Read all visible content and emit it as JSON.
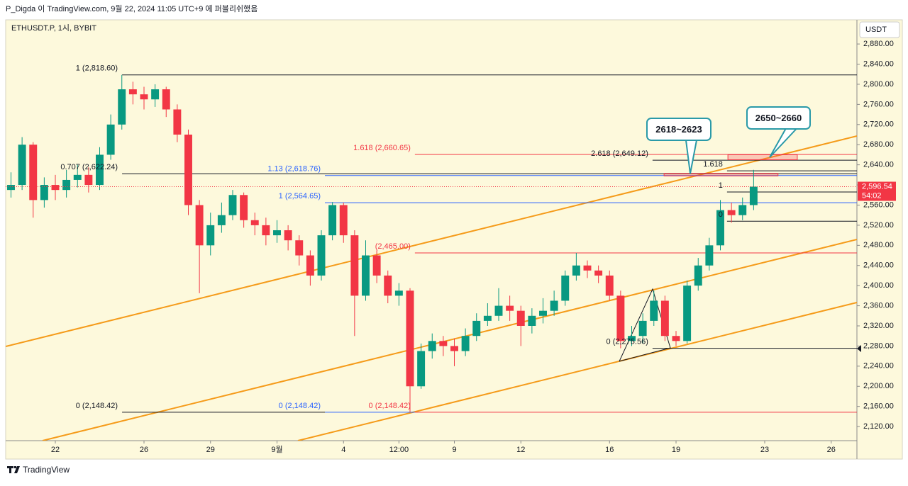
{
  "header": "P_Digda 이 TradingView.com, 9월 22, 2024 11:05 UTC+9 에 퍼블리쉬했음",
  "footer": "TradingView",
  "chart_data": {
    "type": "candlestick",
    "symbol": "ETHUSDT.P, 1시, BYBIT",
    "currency": "USDT",
    "up_color": "#089981",
    "down_color": "#f23645",
    "x": [
      -2,
      -1.5,
      -1,
      -0.5,
      0,
      0.5,
      1,
      1.5,
      2,
      2.5,
      3,
      3.5,
      4,
      4.5,
      5,
      5.5,
      6,
      6.5,
      7,
      7.5,
      8,
      8.5,
      9,
      9.5,
      10,
      10.5,
      11,
      11.5,
      12,
      12.5,
      13,
      13.5,
      14,
      14.5,
      15,
      15.5,
      16,
      16.5,
      17,
      17.5,
      18,
      18.5,
      19,
      19.5,
      20,
      20.5,
      21,
      21.5,
      22,
      22.5,
      23,
      23.5,
      24,
      24.5,
      25,
      25.5,
      26,
      26.5,
      27,
      27.5,
      28,
      28.5,
      29,
      29.5,
      30,
      30.5,
      31,
      31.5
    ],
    "open": [
      2590,
      2600,
      2680,
      2570,
      2600,
      2590,
      2610,
      2620,
      2600,
      2660,
      2720,
      2790,
      2780,
      2770,
      2790,
      2750,
      2700,
      2560,
      2480,
      2520,
      2540,
      2580,
      2530,
      2520,
      2500,
      2510,
      2490,
      2460,
      2420,
      2500,
      2560,
      2500,
      2380,
      2460,
      2420,
      2380,
      2390,
      2200,
      2270,
      2290,
      2280,
      2270,
      2300,
      2330,
      2340,
      2360,
      2350,
      2320,
      2340,
      2350,
      2370,
      2420,
      2440,
      2430,
      2420,
      2380,
      2290,
      2300,
      2330,
      2370,
      2300,
      2290,
      2400,
      2440,
      2480,
      2550,
      2540,
      2560
    ],
    "high": [
      2625,
      2695,
      2685,
      2615,
      2620,
      2630,
      2640,
      2635,
      2675,
      2740,
      2818.6,
      2805,
      2795,
      2800,
      2795,
      2760,
      2710,
      2570,
      2545,
      2565,
      2590,
      2585,
      2545,
      2535,
      2530,
      2520,
      2500,
      2470,
      2510,
      2566,
      2565,
      2510,
      2490,
      2470,
      2430,
      2405,
      2395,
      2285,
      2305,
      2300,
      2295,
      2315,
      2345,
      2365,
      2395,
      2380,
      2360,
      2355,
      2375,
      2390,
      2430,
      2465,
      2450,
      2440,
      2430,
      2390,
      2320,
      2345,
      2390,
      2380,
      2310,
      2410,
      2455,
      2495,
      2570,
      2565,
      2575,
      2630
    ],
    "low": [
      2575,
      2590,
      2535,
      2555,
      2570,
      2575,
      2595,
      2585,
      2590,
      2650,
      2710,
      2760,
      2750,
      2755,
      2735,
      2685,
      2540,
      2385,
      2460,
      2505,
      2530,
      2515,
      2500,
      2480,
      2485,
      2470,
      2440,
      2400,
      2410,
      2490,
      2485,
      2300,
      2370,
      2405,
      2365,
      2360,
      2148.42,
      2195,
      2255,
      2260,
      2240,
      2260,
      2290,
      2320,
      2330,
      2330,
      2280,
      2305,
      2325,
      2340,
      2360,
      2410,
      2415,
      2405,
      2370,
      2275.56,
      2280,
      2285,
      2320,
      2290,
      2280,
      2285,
      2390,
      2430,
      2470,
      2525,
      2530,
      2550
    ],
    "close": [
      2600,
      2680,
      2570,
      2600,
      2590,
      2610,
      2620,
      2600,
      2660,
      2720,
      2790,
      2780,
      2770,
      2790,
      2750,
      2700,
      2560,
      2480,
      2520,
      2540,
      2580,
      2530,
      2520,
      2500,
      2510,
      2490,
      2460,
      2420,
      2500,
      2560,
      2500,
      2380,
      2460,
      2420,
      2380,
      2390,
      2200,
      2270,
      2290,
      2280,
      2270,
      2300,
      2330,
      2340,
      2360,
      2350,
      2320,
      2340,
      2350,
      2370,
      2420,
      2440,
      2430,
      2420,
      2380,
      2290,
      2300,
      2330,
      2370,
      2300,
      2290,
      2400,
      2440,
      2480,
      2550,
      2540,
      2560,
      2596.54
    ],
    "xlim": [
      -2.24,
      36.16
    ],
    "xticks": [
      {
        "value": 0,
        "label": "22"
      },
      {
        "value": 4,
        "label": "26"
      },
      {
        "value": 7,
        "label": "29"
      },
      {
        "value": 10,
        "label": "9월"
      },
      {
        "value": 13,
        "label": "4"
      },
      {
        "value": 15.5,
        "label": "12:00"
      },
      {
        "value": 18,
        "label": "9"
      },
      {
        "value": 21,
        "label": "12"
      },
      {
        "value": 25,
        "label": "16"
      },
      {
        "value": 28,
        "label": "19"
      },
      {
        "value": 32,
        "label": "23"
      },
      {
        "value": 35,
        "label": "26"
      }
    ],
    "ylim": [
      2092,
      2928
    ],
    "yticks": [
      {
        "value": 2120,
        "label": "2,120.00"
      },
      {
        "value": 2160,
        "label": "2,160.00"
      },
      {
        "value": 2200,
        "label": "2,200.00"
      },
      {
        "value": 2240,
        "label": "2,240.00"
      },
      {
        "value": 2280,
        "label": "2,280.00"
      },
      {
        "value": 2320,
        "label": "2,320.00"
      },
      {
        "value": 2360,
        "label": "2,360.00"
      },
      {
        "value": 2400,
        "label": "2,400.00"
      },
      {
        "value": 2440,
        "label": "2,440.00"
      },
      {
        "value": 2480,
        "label": "2,480.00"
      },
      {
        "value": 2520,
        "label": "2,520.00"
      },
      {
        "value": 2560,
        "label": "2,560.00"
      },
      {
        "value": 2600,
        "label": "2,600.00"
      },
      {
        "value": 2640,
        "label": "2,640.00"
      },
      {
        "value": 2680,
        "label": "2,680.00"
      },
      {
        "value": 2720,
        "label": "2,720.00"
      },
      {
        "value": 2760,
        "label": "2,760.00"
      },
      {
        "value": 2800,
        "label": "2,800.00"
      },
      {
        "value": 2840,
        "label": "2,840.00"
      },
      {
        "value": 2880,
        "label": "2,880.00"
      }
    ],
    "grid": false,
    "last_price": {
      "value": 2596.54,
      "label": "2,596.54",
      "countdown": "54:02",
      "color": "#f23645"
    },
    "levels": [
      {
        "label": "1 (2,818.60)",
        "value": 2818.6,
        "from": 3.01,
        "to": 36.16,
        "color": "#131722"
      },
      {
        "label": "0.707 (2,622.24)",
        "value": 2622.24,
        "from": 3.01,
        "to": 36.16,
        "color": "#131722"
      },
      {
        "label": "0 (2,148.42)",
        "value": 2148.42,
        "from": 3.01,
        "to": 12.16,
        "color": "#131722"
      },
      {
        "label": "1.13 (2,618.76)",
        "value": 2618.76,
        "from": 12.16,
        "to": 36.16,
        "color": "#2962ff"
      },
      {
        "label": "1 (2,564.65)",
        "value": 2564.65,
        "from": 12.16,
        "to": 36.16,
        "color": "#2962ff"
      },
      {
        "label": "0 (2,148.42)",
        "value": 2148.42,
        "from": 12.16,
        "to": 16.22,
        "color": "#2962ff"
      },
      {
        "label": "1.618 (2,660.65)",
        "value": 2660.65,
        "from": 16.22,
        "to": 36.16,
        "color": "#f23645"
      },
      {
        "label": "(2,465.00)",
        "value": 2465,
        "from": 16.22,
        "to": 36.16,
        "color": "#f23645"
      },
      {
        "label": "0 (2,148.42)",
        "value": 2148.42,
        "from": 16.22,
        "to": 36.16,
        "color": "#f23645"
      },
      {
        "label": "2.618 (2,649.12)",
        "value": 2649.12,
        "from": 26.94,
        "to": 36.16,
        "color": "#131722"
      },
      {
        "label": "0 (2,275.56)",
        "value": 2275.56,
        "from": 26.94,
        "to": 36.16,
        "color": "#131722"
      },
      {
        "label": "1.618",
        "value": 2628,
        "from": 30.3,
        "to": 36.16,
        "color": "#131722"
      },
      {
        "label": "1",
        "value": 2586,
        "from": 30.3,
        "to": 36.16,
        "color": "#131722"
      },
      {
        "label": "0",
        "value": 2528,
        "from": 30.3,
        "to": 36.16,
        "color": "#131722"
      }
    ],
    "zones": [
      {
        "text": "2618~2623",
        "low": 2618,
        "high": 2623,
        "from": 27.46,
        "to": 32.6
      },
      {
        "text": "2650~2660",
        "low": 2650,
        "high": 2660,
        "from": 30.34,
        "to": 33.47
      }
    ]
  }
}
